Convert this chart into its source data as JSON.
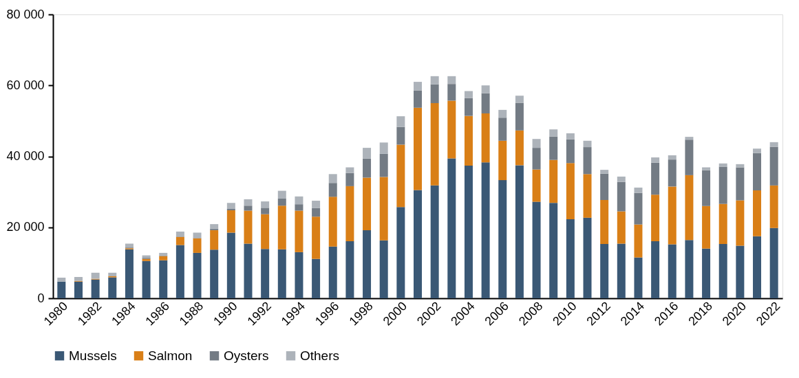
{
  "chart_data": {
    "type": "bar",
    "stacked": true,
    "categories": [
      "1980",
      null,
      "1982",
      null,
      "1984",
      null,
      "1986",
      null,
      "1988",
      null,
      "1990",
      null,
      "1992",
      null,
      "1994",
      null,
      "1996",
      null,
      "1998",
      null,
      "2000",
      null,
      "2002",
      null,
      "2004",
      null,
      "2006",
      null,
      "2008",
      null,
      "2010",
      null,
      "2012",
      null,
      "2014",
      null,
      "2016",
      null,
      "2018",
      null,
      "2020",
      null,
      "2022"
    ],
    "series": [
      {
        "name": "Mussels",
        "color": "#3a5875",
        "values": [
          4700,
          4700,
          5300,
          5900,
          13800,
          10500,
          10700,
          15000,
          12800,
          13700,
          18500,
          15400,
          13900,
          13800,
          13000,
          11100,
          14600,
          16100,
          19200,
          16300,
          25700,
          30500,
          31800,
          39400,
          37400,
          38300,
          33300,
          37500,
          27200,
          26900,
          22300,
          22700,
          15300,
          15400,
          11500,
          16100,
          15200,
          16400,
          14000,
          15300,
          14800,
          17500,
          19800
        ]
      },
      {
        "name": "Salmon",
        "color": "#d97f17",
        "values": [
          0,
          200,
          200,
          300,
          300,
          600,
          1200,
          2300,
          4100,
          5500,
          6300,
          9300,
          9800,
          12300,
          11700,
          11900,
          14000,
          15500,
          14800,
          17900,
          17600,
          23200,
          23200,
          16300,
          14000,
          13800,
          11100,
          9800,
          9100,
          12100,
          15800,
          12300,
          12400,
          9100,
          9300,
          13100,
          16300,
          18300,
          12000,
          11300,
          12800,
          12900,
          12000
        ]
      },
      {
        "name": "Oysters",
        "color": "#737b84",
        "values": [
          0,
          0,
          0,
          0,
          200,
          300,
          200,
          100,
          100,
          400,
          400,
          1400,
          1800,
          2000,
          1800,
          2400,
          3900,
          3700,
          5400,
          6500,
          5000,
          4900,
          5300,
          4700,
          5000,
          5700,
          6500,
          7800,
          6100,
          6600,
          6700,
          7600,
          7400,
          8300,
          8900,
          9000,
          7600,
          10000,
          10100,
          10500,
          9300,
          10500,
          10900
        ]
      },
      {
        "name": "Others",
        "color": "#adb3ba",
        "values": [
          1100,
          1100,
          1700,
          1000,
          1100,
          700,
          700,
          1400,
          1500,
          1300,
          1700,
          1800,
          1800,
          2200,
          2200,
          2100,
          2500,
          1600,
          3000,
          3200,
          3000,
          2400,
          2300,
          2200,
          2000,
          2200,
          2200,
          2000,
          2500,
          2000,
          1700,
          1800,
          1100,
          1500,
          1500,
          1500,
          1200,
          800,
          800,
          900,
          900,
          1300,
          1300
        ]
      }
    ],
    "ylim": [
      0,
      80000
    ],
    "yticks": [
      {
        "value": 0,
        "label": "0"
      },
      {
        "value": 20000,
        "label": "20 000"
      },
      {
        "value": 40000,
        "label": "40 000"
      },
      {
        "value": 60000,
        "label": "60 000"
      },
      {
        "value": 80000,
        "label": "80 000"
      }
    ],
    "grid": false,
    "legend": "bottom"
  }
}
